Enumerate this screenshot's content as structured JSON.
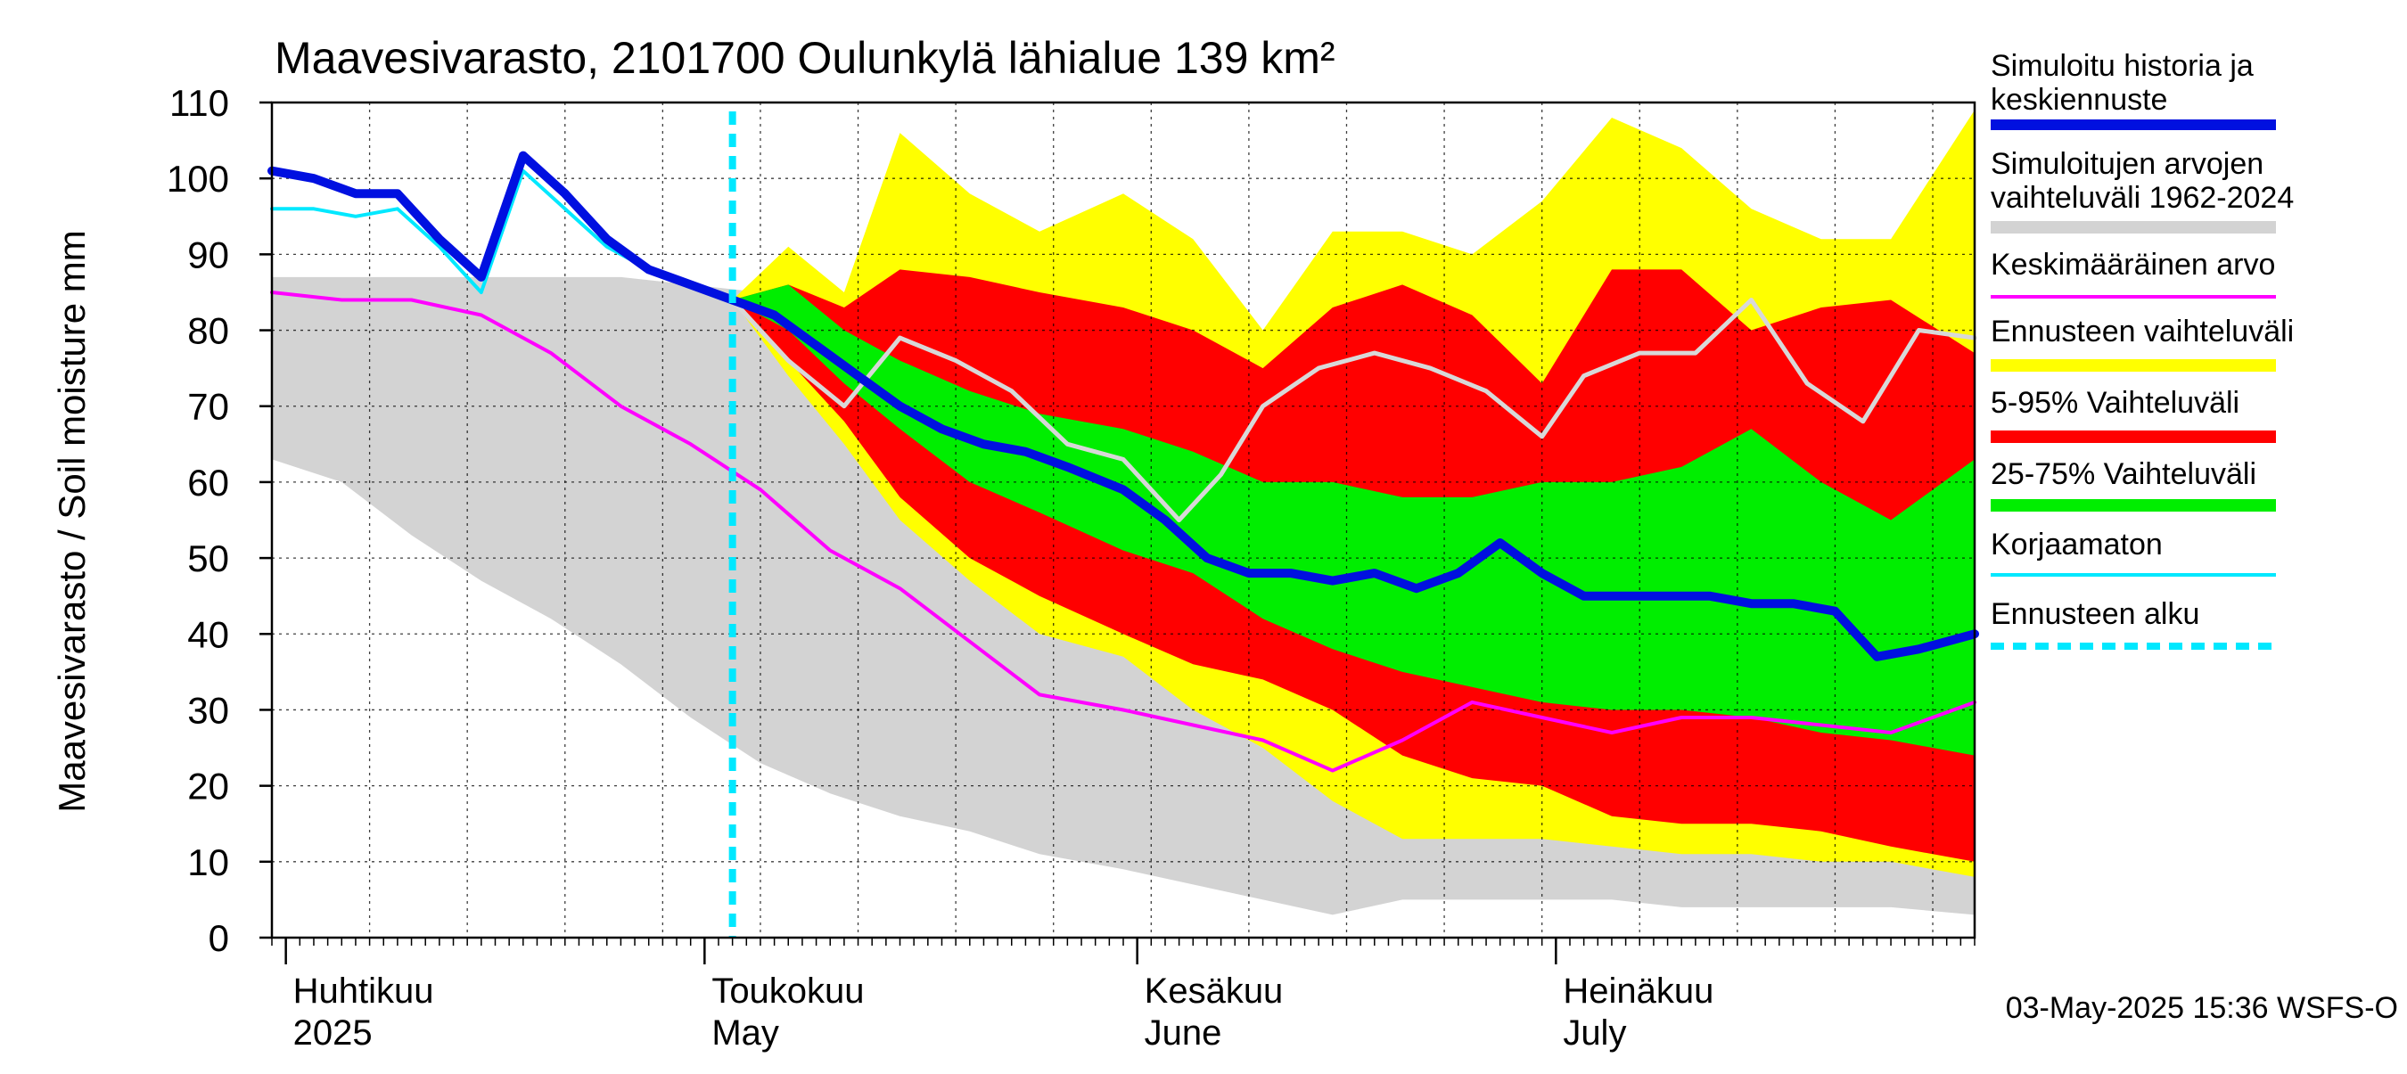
{
  "chart_data": {
    "type": "area",
    "title": "Maavesivarasto, 2101700 Oulunkylä lähialue 139 km²",
    "ylabel": "Maavesivarasto / Soil moisture   mm",
    "xlabel": "",
    "ylim": [
      0,
      110
    ],
    "yticks": [
      0,
      10,
      20,
      30,
      40,
      50,
      60,
      70,
      80,
      90,
      100,
      110
    ],
    "xlim": [
      "2025-03-31",
      "2025-07-31"
    ],
    "month_labels": [
      {
        "date": "2025-04-01",
        "fi": "Huhtikuu",
        "en": "2025"
      },
      {
        "date": "2025-05-01",
        "fi": "Toukokuu",
        "en": "May"
      },
      {
        "date": "2025-06-01",
        "fi": "Kesäkuu",
        "en": "June"
      },
      {
        "date": "2025-07-01",
        "fi": "Heinäkuu",
        "en": "July"
      }
    ],
    "forecast_start": "2025-05-03",
    "grid": true,
    "legend_position": "right",
    "footer": "03-May-2025 15:36 WSFS-O",
    "colors": {
      "history": "#0010e0",
      "range_hist": "#d3d3d3",
      "mean": "#ff00ff",
      "forecast_range": "#ffff00",
      "p5_95": "#ff0000",
      "p25_75": "#00ee00",
      "uncorrected": "#00e8ff",
      "forecast_start": "#00e8ff",
      "grey_line": "#d8d8d8"
    },
    "legend": [
      {
        "label": "Simuloitu historia ja keskiennuste",
        "kind": "history"
      },
      {
        "label": "Simuloitujen arvojen vaihteluväli 1962-2024",
        "kind": "range_hist"
      },
      {
        "label": "Keskimääräinen arvo",
        "kind": "mean"
      },
      {
        "label": "Ennusteen vaihteluväli",
        "kind": "forecast_range"
      },
      {
        "label": "5-95% Vaihteluväli",
        "kind": "p5_95"
      },
      {
        "label": "25-75% Vaihteluväli",
        "kind": "p25_75"
      },
      {
        "label": "Korjaamaton",
        "kind": "uncorrected"
      },
      {
        "label": "Ennusteen alku",
        "kind": "forecast_start"
      }
    ],
    "series": {
      "hist_range": {
        "x": [
          "2025-03-31",
          "2025-04-05",
          "2025-04-10",
          "2025-04-15",
          "2025-04-20",
          "2025-04-25",
          "2025-04-30",
          "2025-05-05",
          "2025-05-10",
          "2025-05-15",
          "2025-05-20",
          "2025-05-25",
          "2025-05-31",
          "2025-06-05",
          "2025-06-10",
          "2025-06-15",
          "2025-06-20",
          "2025-06-25",
          "2025-06-30",
          "2025-07-05",
          "2025-07-10",
          "2025-07-15",
          "2025-07-20",
          "2025-07-25",
          "2025-07-31"
        ],
        "upper": [
          87,
          87,
          87,
          87,
          87,
          87,
          86,
          85,
          77,
          72,
          67,
          64,
          59,
          54,
          50,
          46,
          42,
          37,
          34,
          31,
          28,
          25,
          23,
          21,
          20
        ],
        "lower": [
          63,
          60,
          53,
          47,
          42,
          36,
          29,
          23,
          19,
          16,
          14,
          11,
          9,
          7,
          5,
          3,
          5,
          5,
          5,
          5,
          4,
          4,
          4,
          4,
          3
        ]
      },
      "mean": {
        "x": [
          "2025-03-31",
          "2025-04-05",
          "2025-04-10",
          "2025-04-15",
          "2025-04-20",
          "2025-04-25",
          "2025-04-30",
          "2025-05-05",
          "2025-05-10",
          "2025-05-15",
          "2025-05-20",
          "2025-05-25",
          "2025-05-31",
          "2025-06-05",
          "2025-06-10",
          "2025-06-15",
          "2025-06-20",
          "2025-06-25",
          "2025-06-30",
          "2025-07-05",
          "2025-07-10",
          "2025-07-15",
          "2025-07-20",
          "2025-07-25",
          "2025-07-31"
        ],
        "values": [
          85,
          84,
          84,
          82,
          77,
          70,
          65,
          59,
          51,
          46,
          39,
          32,
          30,
          28,
          26,
          22,
          26,
          31,
          29,
          27,
          29,
          29,
          28,
          27,
          31
        ]
      },
      "uncorrected": {
        "x": [
          "2025-03-31",
          "2025-04-03",
          "2025-04-06",
          "2025-04-09",
          "2025-04-12",
          "2025-04-15",
          "2025-04-18",
          "2025-04-21",
          "2025-04-24",
          "2025-04-27",
          "2025-04-30",
          "2025-05-03"
        ],
        "values": [
          96,
          96,
          95,
          96,
          91,
          85,
          101,
          96,
          91,
          88,
          86,
          84
        ]
      },
      "history": {
        "x": [
          "2025-03-31",
          "2025-04-03",
          "2025-04-06",
          "2025-04-09",
          "2025-04-12",
          "2025-04-15",
          "2025-04-18",
          "2025-04-21",
          "2025-04-24",
          "2025-04-27",
          "2025-04-30",
          "2025-05-03"
        ],
        "values": [
          101,
          100,
          98,
          98,
          92,
          87,
          103,
          98,
          92,
          88,
          86,
          84
        ]
      },
      "forecast_median": {
        "x": [
          "2025-05-03",
          "2025-05-06",
          "2025-05-09",
          "2025-05-12",
          "2025-05-15",
          "2025-05-18",
          "2025-05-21",
          "2025-05-24",
          "2025-05-27",
          "2025-05-31",
          "2025-06-03",
          "2025-06-06",
          "2025-06-09",
          "2025-06-12",
          "2025-06-15",
          "2025-06-18",
          "2025-06-21",
          "2025-06-24",
          "2025-06-27",
          "2025-06-30",
          "2025-07-03",
          "2025-07-06",
          "2025-07-09",
          "2025-07-12",
          "2025-07-15",
          "2025-07-18",
          "2025-07-21",
          "2025-07-24",
          "2025-07-27",
          "2025-07-31"
        ],
        "values": [
          84,
          82,
          78,
          74,
          70,
          67,
          65,
          64,
          62,
          59,
          55,
          50,
          48,
          48,
          47,
          48,
          46,
          48,
          52,
          48,
          45,
          45,
          45,
          45,
          44,
          44,
          43,
          37,
          38,
          40
        ]
      },
      "grey_member": {
        "x": [
          "2025-05-03",
          "2025-05-07",
          "2025-05-11",
          "2025-05-15",
          "2025-05-19",
          "2025-05-23",
          "2025-05-27",
          "2025-05-31",
          "2025-06-04",
          "2025-06-07",
          "2025-06-10",
          "2025-06-14",
          "2025-06-18",
          "2025-06-22",
          "2025-06-26",
          "2025-06-30",
          "2025-07-03",
          "2025-07-07",
          "2025-07-11",
          "2025-07-15",
          "2025-07-19",
          "2025-07-23",
          "2025-07-27",
          "2025-07-31"
        ],
        "values": [
          84,
          76,
          70,
          79,
          76,
          72,
          65,
          63,
          55,
          61,
          70,
          75,
          77,
          75,
          72,
          66,
          74,
          77,
          77,
          84,
          73,
          68,
          80,
          79
        ]
      },
      "fc_range": {
        "x": [
          "2025-05-03",
          "2025-05-07",
          "2025-05-11",
          "2025-05-15",
          "2025-05-20",
          "2025-05-25",
          "2025-05-31",
          "2025-06-05",
          "2025-06-10",
          "2025-06-15",
          "2025-06-20",
          "2025-06-25",
          "2025-06-30",
          "2025-07-05",
          "2025-07-10",
          "2025-07-15",
          "2025-07-20",
          "2025-07-25",
          "2025-07-31"
        ],
        "upper": [
          84,
          91,
          85,
          106,
          98,
          93,
          98,
          92,
          80,
          93,
          93,
          90,
          97,
          108,
          104,
          96,
          92,
          92,
          109
        ],
        "lower": [
          84,
          74,
          65,
          55,
          47,
          40,
          37,
          30,
          25,
          18,
          13,
          13,
          13,
          12,
          11,
          11,
          10,
          10,
          8
        ]
      },
      "p5_95": {
        "x": [
          "2025-05-03",
          "2025-05-07",
          "2025-05-11",
          "2025-05-15",
          "2025-05-20",
          "2025-05-25",
          "2025-05-31",
          "2025-06-05",
          "2025-06-10",
          "2025-06-15",
          "2025-06-20",
          "2025-06-25",
          "2025-06-30",
          "2025-07-05",
          "2025-07-10",
          "2025-07-15",
          "2025-07-20",
          "2025-07-25",
          "2025-07-31"
        ],
        "upper": [
          84,
          86,
          83,
          88,
          87,
          85,
          83,
          80,
          75,
          83,
          86,
          82,
          73,
          88,
          88,
          80,
          83,
          84,
          77
        ],
        "lower": [
          84,
          76,
          68,
          58,
          50,
          45,
          40,
          36,
          34,
          30,
          24,
          21,
          20,
          16,
          15,
          15,
          14,
          12,
          10
        ]
      },
      "p25_75": {
        "x": [
          "2025-05-03",
          "2025-05-07",
          "2025-05-11",
          "2025-05-15",
          "2025-05-20",
          "2025-05-25",
          "2025-05-31",
          "2025-06-05",
          "2025-06-10",
          "2025-06-15",
          "2025-06-20",
          "2025-06-25",
          "2025-06-30",
          "2025-07-05",
          "2025-07-10",
          "2025-07-15",
          "2025-07-20",
          "2025-07-25",
          "2025-07-31"
        ],
        "upper": [
          84,
          86,
          80,
          76,
          72,
          69,
          67,
          64,
          60,
          60,
          58,
          58,
          60,
          60,
          62,
          67,
          60,
          55,
          63
        ],
        "lower": [
          84,
          80,
          73,
          67,
          60,
          56,
          51,
          48,
          42,
          38,
          35,
          33,
          31,
          30,
          30,
          29,
          27,
          26,
          24
        ]
      }
    }
  }
}
